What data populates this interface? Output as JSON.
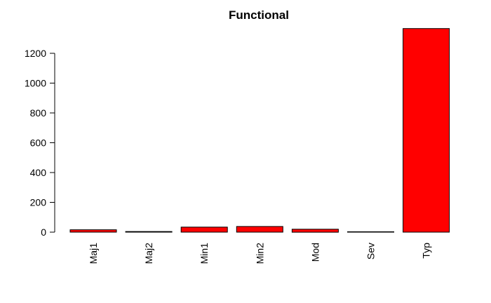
{
  "chart_data": {
    "type": "bar",
    "title": "Functional",
    "xlabel": "",
    "ylabel": "",
    "categories": [
      "Maj1",
      "Maj2",
      "Min1",
      "Min2",
      "Mod",
      "Sev",
      "Typ"
    ],
    "values": [
      16,
      4,
      34,
      38,
      20,
      3,
      1366
    ],
    "yticks": [
      0,
      200,
      400,
      600,
      800,
      1000,
      1200
    ],
    "ylim": [
      0,
      1366
    ],
    "bar_color": "#ff0000",
    "grid": false,
    "legend": "none"
  }
}
